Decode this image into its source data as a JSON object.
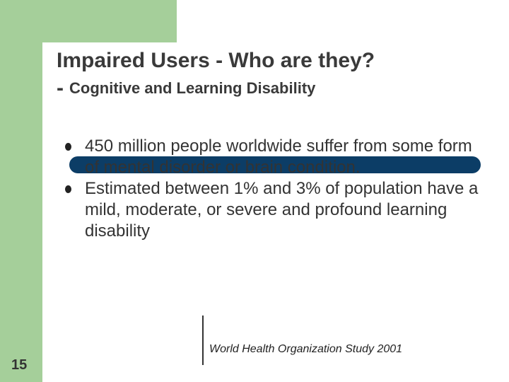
{
  "slide": {
    "title": "Impaired Users - Who are they?",
    "subtitle_dash": "-",
    "subtitle": "Cognitive and Learning Disability",
    "bullets": [
      {
        "text": "450 million people worldwide suffer from some form of mental disorder or brain condition."
      },
      {
        "text": "Estimated between 1% and 3% of population have a mild, moderate, or severe and profound learning disability"
      }
    ],
    "citation": "World Health Organization Study 2001",
    "page_number": "15"
  },
  "colors": {
    "accent_green": "#a5cf9a",
    "title_bar": "#0c3d66",
    "title_text": "#3a3a3a"
  }
}
